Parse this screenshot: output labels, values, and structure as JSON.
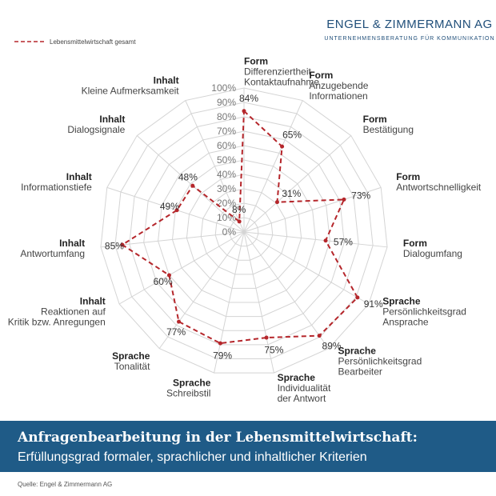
{
  "header": {
    "brand": "ENGEL & ZIMMERMANN AG",
    "tagline": "UNTERNEHMENSBERATUNG FÜR KOMMUNIKATION"
  },
  "chart_data": {
    "type": "radar",
    "title": "Anfragenbearbeitung in der Lebensmittelwirtschaft:",
    "subtitle": "Erfüllungsgrad formaler, sprachlicher und inhaltlicher Kriterien",
    "groups": [
      "Form",
      "Form",
      "Form",
      "Form",
      "Form",
      "Sprache",
      "Sprache",
      "Sprache",
      "Sprache",
      "Sprache",
      "Inhalt",
      "Inhalt",
      "Inhalt",
      "Inhalt",
      "Inhalt"
    ],
    "categories": [
      "Differenziertheit\nKontaktaufnahme",
      "Anzugebende\nInformationen",
      "Bestätigung",
      "Antwortschnelligkeit",
      "Dialogumfang",
      "Persönlichkeitsgrad\nAnsprache",
      "Persönlichkeitsgrad\nBearbeiter",
      "Individualität\nder Antwort",
      "Schreibstil",
      "Tonalität",
      "Reaktionen auf\nKritik bzw. Anregungen",
      "Antwortumfang",
      "Informationstiefe",
      "Dialogsignale",
      "Kleine Aufmerksamkeit"
    ],
    "series": [
      {
        "name": "Lebensmittelwirtschaft gesamt",
        "color": "#b5262b",
        "values": [
          84,
          65,
          31,
          73,
          57,
          91,
          89,
          75,
          79,
          77,
          60,
          85,
          49,
          48,
          8
        ],
        "value_labels": [
          "84%",
          "65%",
          "31%",
          "73%",
          "57%",
          "91%",
          "89%",
          "75%",
          "79%",
          "77%",
          "60%",
          "85%",
          "49%",
          "48%",
          "8%"
        ]
      }
    ],
    "ylim": [
      0,
      100
    ],
    "yticks": [
      {
        "value": 0,
        "label": "0%"
      },
      {
        "value": 10,
        "label": "10%"
      },
      {
        "value": 20,
        "label": "20%"
      },
      {
        "value": 30,
        "label": "30%"
      },
      {
        "value": 40,
        "label": "40%"
      },
      {
        "value": 50,
        "label": "50%"
      },
      {
        "value": 60,
        "label": "60%"
      },
      {
        "value": 70,
        "label": "70%"
      },
      {
        "value": 80,
        "label": "80%"
      },
      {
        "value": 90,
        "label": "90%"
      },
      {
        "value": 100,
        "label": "100%"
      }
    ],
    "grid": true,
    "legend": "top-left",
    "source": "Quelle: Engel & Zimmermann AG"
  }
}
